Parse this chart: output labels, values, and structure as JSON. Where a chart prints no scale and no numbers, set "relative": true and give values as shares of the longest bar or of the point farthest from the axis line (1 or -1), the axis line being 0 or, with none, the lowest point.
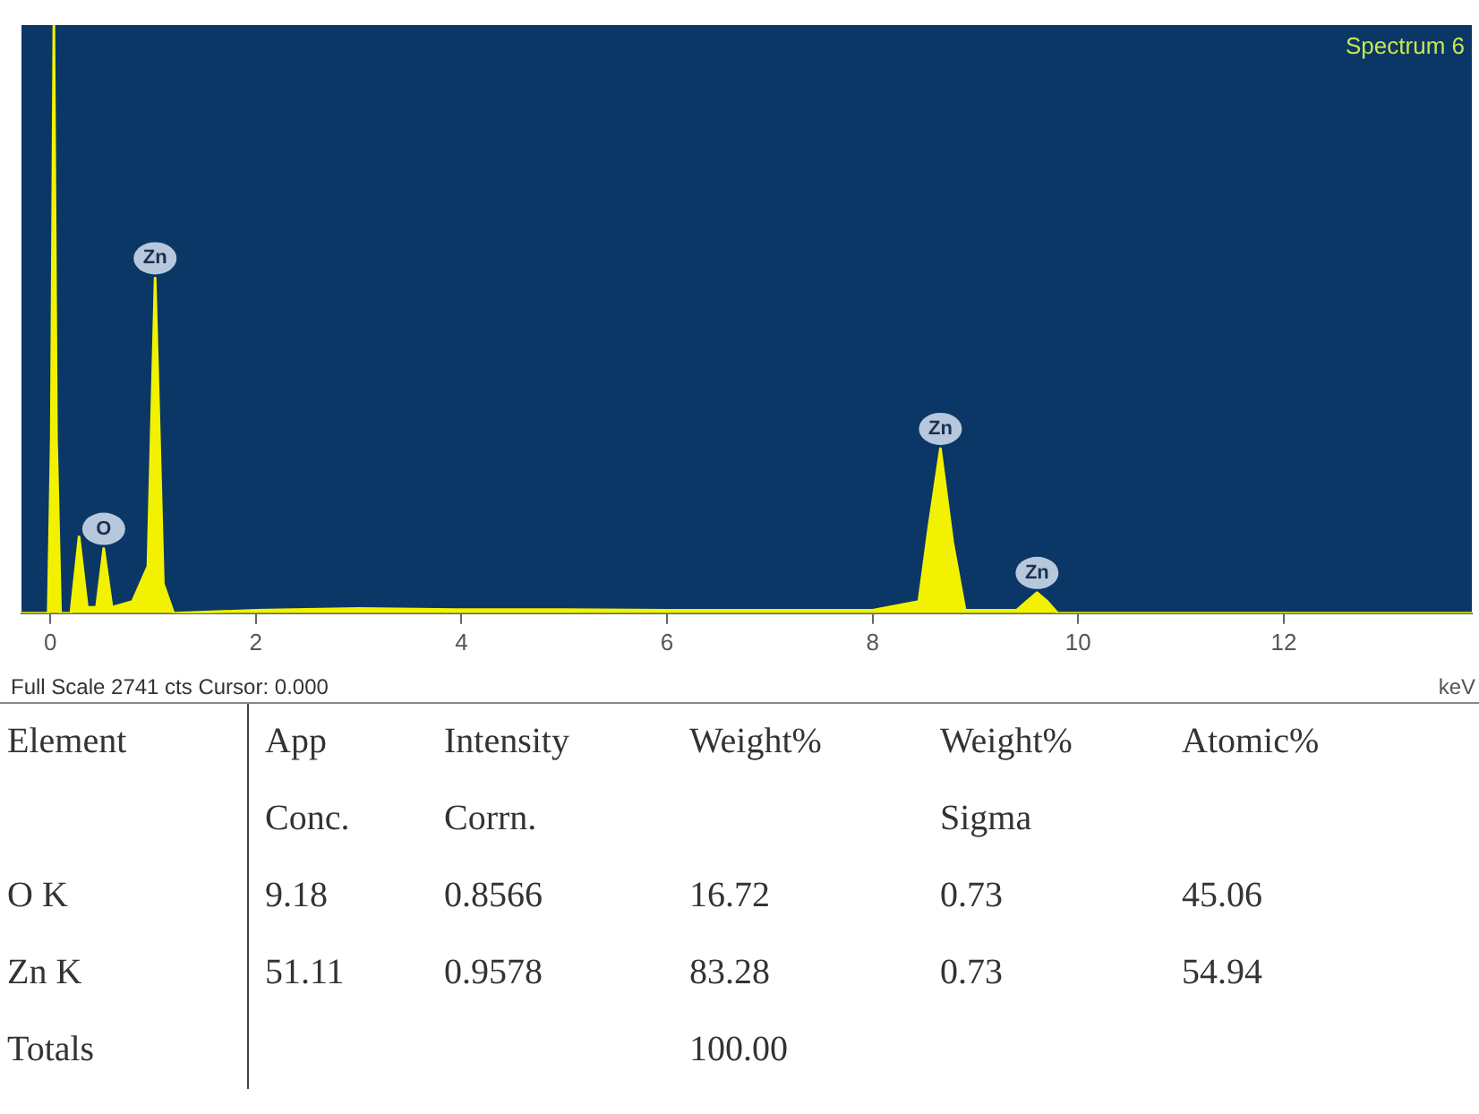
{
  "chart_data": [
    {
      "type": "area",
      "title": "Spectrum 6",
      "xlabel": "keV",
      "relative": true,
      "xlim": [
        -0.28,
        13.83
      ],
      "xticks": [
        0,
        2,
        4,
        6,
        8,
        10,
        12
      ],
      "color": "#f2f200",
      "x": [
        -0.28,
        -0.02,
        0.01,
        0.035,
        0.06,
        0.1,
        0.2,
        0.28,
        0.36,
        0.45,
        0.52,
        0.6,
        0.8,
        0.95,
        1.02,
        1.1,
        1.2,
        2.0,
        3.0,
        4.0,
        5.0,
        6.0,
        7.0,
        8.0,
        8.45,
        8.55,
        8.66,
        8.78,
        8.9,
        9.4,
        9.5,
        9.6,
        9.7,
        9.8,
        13.83
      ],
      "values": [
        0,
        0,
        0.3,
        1,
        0.3,
        0,
        0,
        0.13,
        0.01,
        0.01,
        0.11,
        0.01,
        0.02,
        0.08,
        0.57,
        0.05,
        0,
        0.005,
        0.008,
        0.006,
        0.006,
        0.005,
        0.005,
        0.005,
        0.02,
        0.15,
        0.28,
        0.12,
        0.005,
        0.005,
        0.02,
        0.035,
        0.02,
        0,
        0
      ],
      "annotations": [
        {
          "text": "Zn",
          "x": 1.02,
          "y": 0.57
        },
        {
          "text": "O",
          "x": 0.52,
          "y": 0.11
        },
        {
          "text": "Zn",
          "x": 8.66,
          "y": 0.28
        },
        {
          "text": "Zn",
          "x": 9.6,
          "y": 0.035
        },
        "Full Scale 2741 cts Cursor: 0.000"
      ]
    },
    {
      "type": "other",
      "annotations": [
        "Element",
        "App",
        "Intensity",
        "Weight%",
        "Weight%",
        "Atomic%",
        null,
        "Conc.",
        "Corrn.",
        null,
        "Sigma",
        null,
        "O K",
        "9.18",
        "0.8566",
        "16.72",
        "0.73",
        "45.06",
        "Zn K",
        "51.11",
        "0.9578",
        "83.28",
        "0.73",
        "54.94",
        "Totals",
        null,
        null,
        "100.00",
        null,
        null
      ]
    }
  ]
}
